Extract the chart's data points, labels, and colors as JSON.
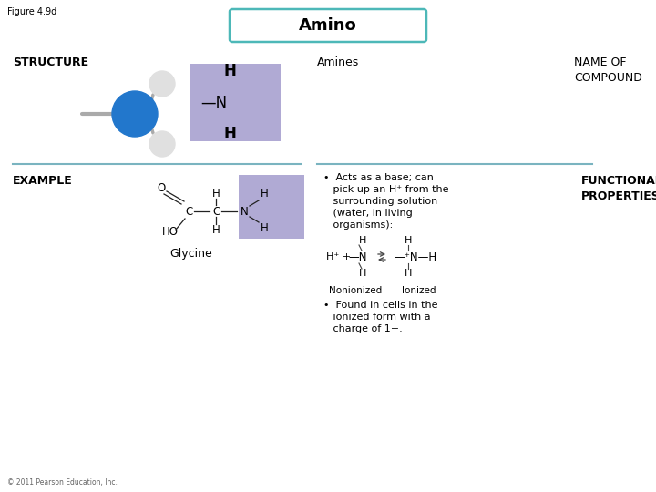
{
  "figure_label": "Figure 4.9d",
  "title": "Amino",
  "title_box_color": "#4db8b8",
  "title_bg": "#ffffff",
  "bg_color": "#ffffff",
  "structure_label": "STRUCTURE",
  "name_label": "NAME OF\nCOMPOUND",
  "amines_label": "Amines",
  "example_label": "EXAMPLE",
  "functional_label": "FUNCTIONAL\nPROPERTIES",
  "glycine_label": "Glycine",
  "bullet1_line1": "•  Acts as a base; can",
  "bullet1_line2": "   pick up an H⁺ from the",
  "bullet1_line3": "   surrounding solution",
  "bullet1_line4": "   (water, in living",
  "bullet1_line5": "   organisms):",
  "bullet2_line1": "•  Found in cells in the",
  "bullet2_line2": "   ionized form with a",
  "bullet2_line3": "   charge of 1+.",
  "nonionized_label": "Nonionized",
  "ionized_label": "Ionized",
  "purple_bg": "#b0aad4",
  "copyright": "© 2011 Pearson Education, Inc.",
  "divider_color": "#7ab4c0",
  "font_color": "#000000",
  "title_font_size": 13,
  "header_font_size": 9,
  "body_font_size": 8,
  "mol_font_size": 8
}
